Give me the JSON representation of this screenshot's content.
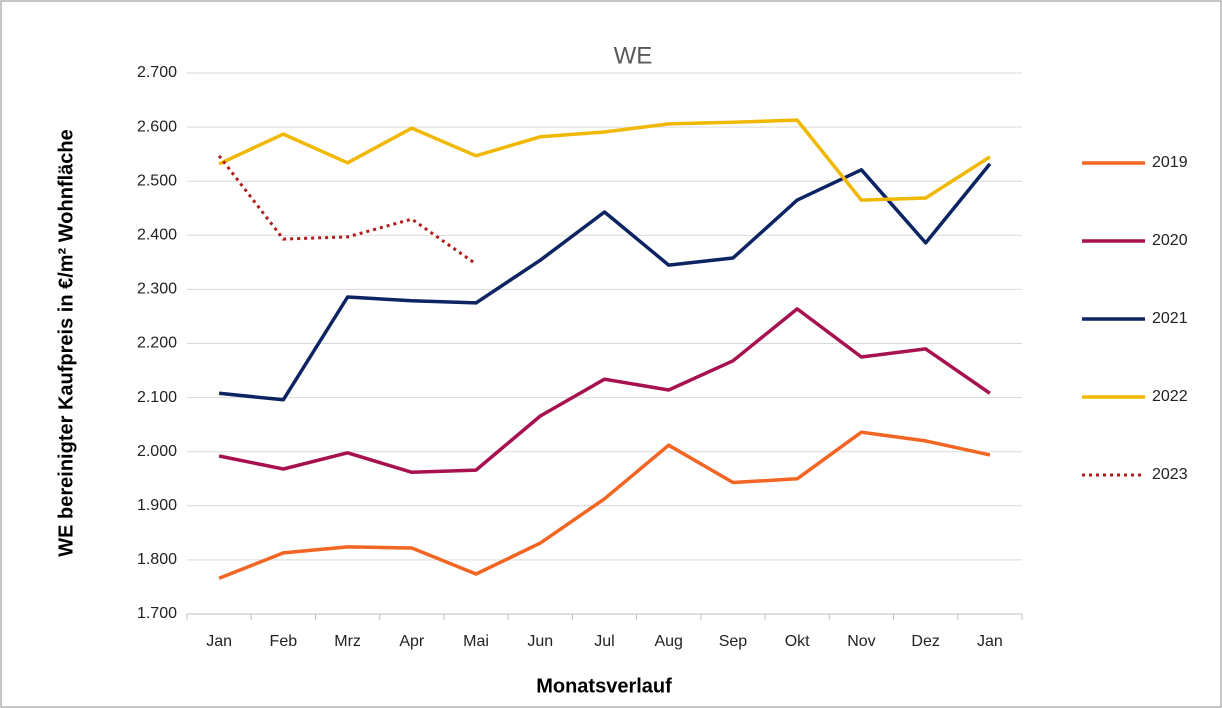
{
  "chart_data": {
    "type": "line",
    "title": "WE",
    "x_label": "Monatsverlauf",
    "y_label": "WE bereinigter Kaufpreis in €/m² Wohnfläche",
    "categories": [
      "Jan",
      "Feb",
      "Mrz",
      "Apr",
      "Mai",
      "Jun",
      "Jul",
      "Aug",
      "Sep",
      "Okt",
      "Nov",
      "Dez",
      "Jan"
    ],
    "series": [
      {
        "name": "2019",
        "color": "#f26522",
        "line_style": "solid",
        "values": [
          1766,
          1813,
          1824,
          1822,
          1774,
          1831,
          1913,
          2012,
          1943,
          1950,
          2036,
          2020,
          1994
        ]
      },
      {
        "name": "2020",
        "color": "#a8114f",
        "line_style": "solid",
        "values": [
          1992,
          1968,
          1998,
          1962,
          1966,
          2066,
          2134,
          2114,
          2168,
          2264,
          2175,
          2190,
          2108
        ]
      },
      {
        "name": "2021",
        "color": "#0c2461",
        "line_style": "solid",
        "values": [
          2108,
          2096,
          2286,
          2279,
          2275,
          2354,
          2443,
          2345,
          2358,
          2465,
          2521,
          2386,
          2532
        ]
      },
      {
        "name": "2022",
        "color": "#f0b800",
        "line_style": "solid",
        "values": [
          2532,
          2587,
          2534,
          2598,
          2547,
          2582,
          2591,
          2606,
          2609,
          2613,
          2465,
          2469,
          2545
        ]
      },
      {
        "name": "2023",
        "color": "#b01b1b",
        "line_style": "dotted",
        "values": [
          2547,
          2393,
          2397,
          2430,
          2347,
          null,
          null,
          null,
          null,
          null,
          null,
          null,
          null
        ]
      }
    ],
    "ylim": [
      1700,
      2700
    ],
    "yticks": [
      {
        "value": 1700,
        "label": "1.700"
      },
      {
        "value": 1800,
        "label": "1.800"
      },
      {
        "value": 1900,
        "label": "1.900"
      },
      {
        "value": 2000,
        "label": "2.000"
      },
      {
        "value": 2100,
        "label": "2.100"
      },
      {
        "value": 2200,
        "label": "2.200"
      },
      {
        "value": 2300,
        "label": "2.300"
      },
      {
        "value": 2400,
        "label": "2.400"
      },
      {
        "value": 2500,
        "label": "2.500"
      },
      {
        "value": 2600,
        "label": "2.600"
      },
      {
        "value": 2700,
        "label": "2.700"
      }
    ],
    "grid": true,
    "legend": "right"
  }
}
